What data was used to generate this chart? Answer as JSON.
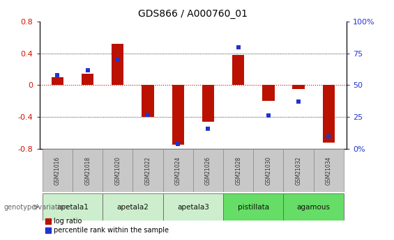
{
  "title": "GDS866 / A000760_01",
  "samples": [
    "GSM21016",
    "GSM21018",
    "GSM21020",
    "GSM21022",
    "GSM21024",
    "GSM21026",
    "GSM21028",
    "GSM21030",
    "GSM21032",
    "GSM21034"
  ],
  "log_ratio": [
    0.1,
    0.14,
    0.52,
    -0.4,
    -0.75,
    -0.46,
    0.38,
    -0.2,
    -0.05,
    -0.72
  ],
  "percentile_rank": [
    58,
    62,
    70,
    27,
    4,
    16,
    80,
    26,
    37,
    10
  ],
  "groups": [
    {
      "label": "apetala1",
      "indices": [
        0,
        1
      ],
      "color": "#cceecc"
    },
    {
      "label": "apetala2",
      "indices": [
        2,
        3
      ],
      "color": "#cceecc"
    },
    {
      "label": "apetala3",
      "indices": [
        4,
        5
      ],
      "color": "#cceecc"
    },
    {
      "label": "pistillata",
      "indices": [
        6,
        7
      ],
      "color": "#66dd66"
    },
    {
      "label": "agamous",
      "indices": [
        8,
        9
      ],
      "color": "#66dd66"
    }
  ],
  "bar_color": "#bb1100",
  "dot_color": "#2233cc",
  "zero_line_color": "#cc0000",
  "ylim_left": [
    -0.8,
    0.8
  ],
  "ylim_right": [
    0,
    100
  ],
  "yticks_left": [
    -0.8,
    -0.4,
    0.0,
    0.4,
    0.8
  ],
  "ytick_labels_left": [
    "-0.8",
    "-0.4",
    "0",
    "0.4",
    "0.8"
  ],
  "yticks_right": [
    0,
    25,
    50,
    75,
    100
  ],
  "ytick_labels_right": [
    "0%",
    "25",
    "50",
    "75",
    "100%"
  ],
  "dotted_lines": [
    -0.4,
    0.0,
    0.4
  ],
  "legend_log_ratio": "log ratio",
  "legend_percentile": "percentile rank within the sample",
  "genotype_label": "genotype/variation",
  "sample_box_color": "#c8c8c8",
  "bar_width": 0.4
}
